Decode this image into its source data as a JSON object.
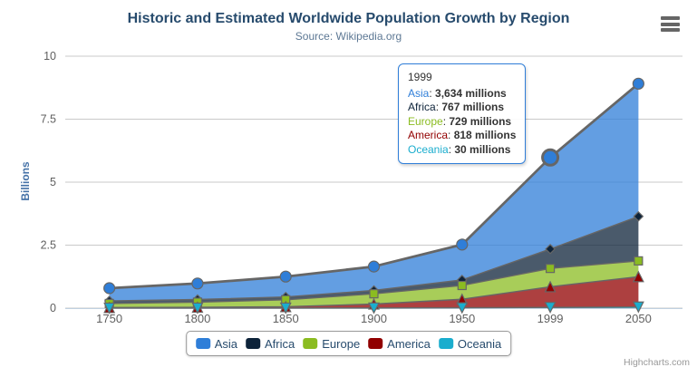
{
  "chart_data": {
    "type": "area",
    "stacking": "normal",
    "title": "Historic and Estimated Worldwide Population Growth by Region",
    "subtitle": "Source: Wikipedia.org",
    "categories": [
      "1750",
      "1800",
      "1850",
      "1900",
      "1950",
      "1999",
      "2050"
    ],
    "unit": "millions",
    "xlabel": "",
    "ylabel": "Billions",
    "ylim": [
      0,
      10
    ],
    "yticks": [
      0,
      2.5,
      5,
      7.5,
      10
    ],
    "grid": true,
    "legend_position": "bottom",
    "series": [
      {
        "name": "Asia",
        "color": "#2f7ed8",
        "marker": "circle",
        "values": [
          502,
          635,
          809,
          947,
          1402,
          3634,
          5268
        ]
      },
      {
        "name": "Africa",
        "color": "#0d233a",
        "marker": "diamond",
        "values": [
          106,
          107,
          111,
          133,
          221,
          767,
          1766
        ]
      },
      {
        "name": "Europe",
        "color": "#8bbc21",
        "marker": "square",
        "values": [
          163,
          203,
          276,
          408,
          547,
          729,
          628
        ]
      },
      {
        "name": "America",
        "color": "#910000",
        "marker": "triangle",
        "values": [
          18,
          31,
          54,
          156,
          339,
          818,
          1201
        ]
      },
      {
        "name": "Oceania",
        "color": "#1aadce",
        "marker": "triangle-down",
        "values": [
          2,
          2,
          2,
          6,
          13,
          30,
          46
        ]
      }
    ],
    "hover_point": {
      "category": "1999",
      "series": "Asia"
    },
    "line_color": "#666666",
    "grid_color": "#c9c9c9",
    "axis_line_color": "#c0d0e0",
    "axis_label_color": "#606060"
  },
  "tooltip": {
    "header": "1999",
    "border_color": "#2f7ed8",
    "rows": [
      {
        "name": "Asia",
        "color": "#2f7ed8",
        "value": "3,634 millions"
      },
      {
        "name": "Africa",
        "color": "#0d233a",
        "value": "767 millions"
      },
      {
        "name": "Europe",
        "color": "#8bbc21",
        "value": "729 millions"
      },
      {
        "name": "America",
        "color": "#910000",
        "value": "818 millions"
      },
      {
        "name": "Oceania",
        "color": "#1aadce",
        "value": "30 millions"
      }
    ]
  },
  "credits": {
    "label": "Highcharts.com"
  }
}
